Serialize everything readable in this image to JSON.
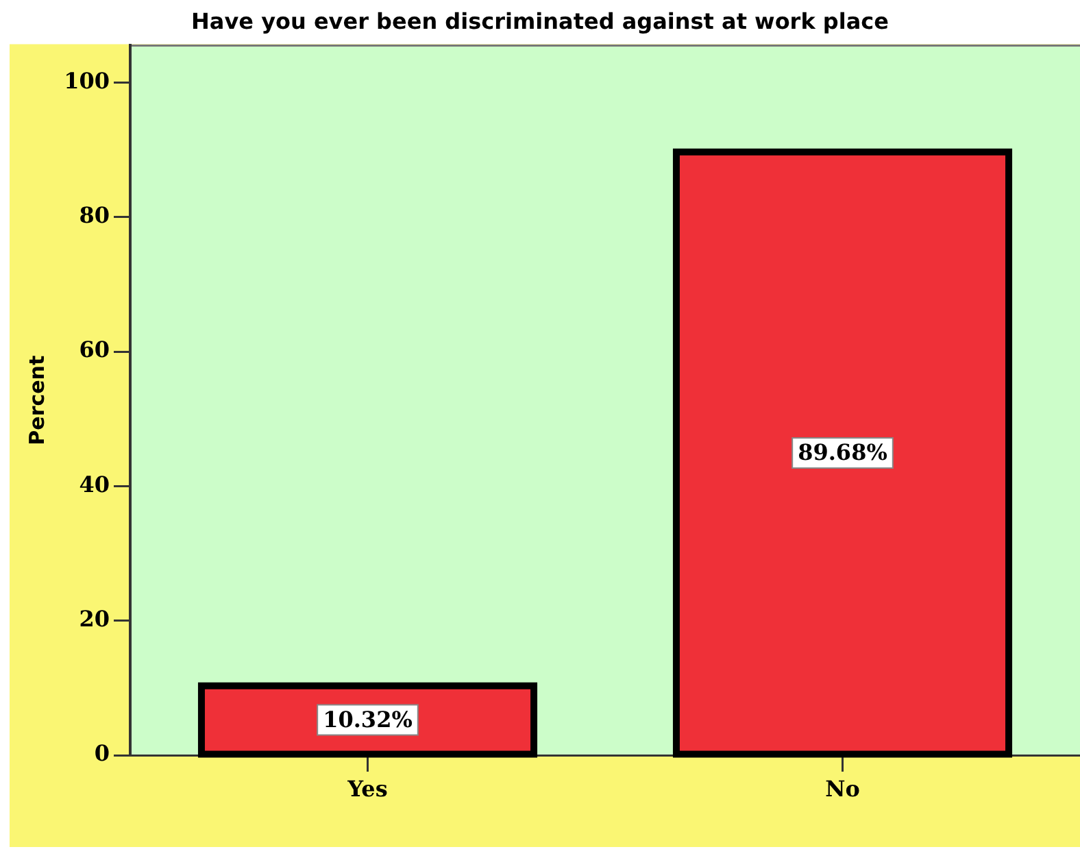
{
  "chart_data": {
    "type": "bar",
    "title": "Have you ever been discriminated against at work place",
    "ylabel": "Percent",
    "categories": [
      "Yes",
      "No"
    ],
    "values": [
      10.32,
      89.68
    ],
    "color": "#ef3038",
    "value_labels": [
      "10.32%",
      "89.68%"
    ],
    "ylim": [
      0,
      105.5
    ],
    "yticks": [
      0,
      20,
      40,
      60,
      80,
      100
    ]
  }
}
